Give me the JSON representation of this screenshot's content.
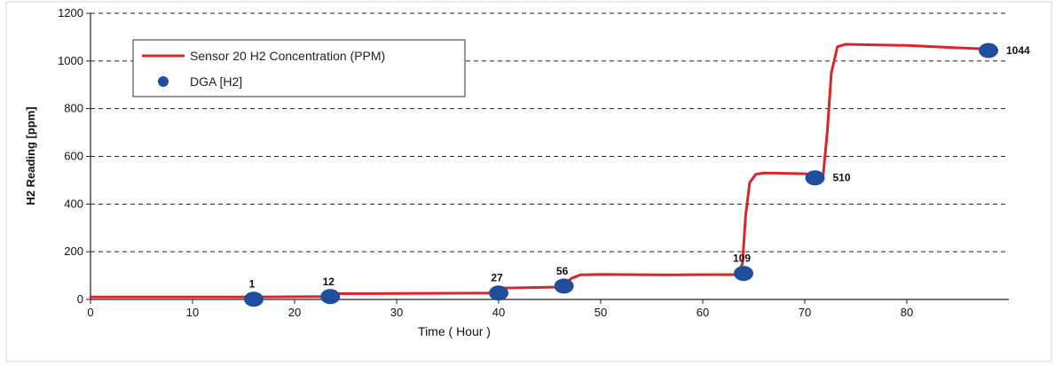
{
  "chart_data": {
    "type": "line",
    "xlabel": "Time ( Hour )",
    "ylabel": "H2 Reading [ppm]",
    "xlim": [
      0,
      90
    ],
    "ylim": [
      0,
      1200
    ],
    "x_ticks": [
      0,
      10,
      20,
      30,
      40,
      50,
      60,
      70,
      80
    ],
    "y_ticks": [
      0,
      200,
      400,
      600,
      800,
      1000,
      1200
    ],
    "grid": "horizontal-dashed",
    "legend_position": "top-left",
    "series": [
      {
        "name": "Sensor 20 H2 Concentration (PPM)",
        "kind": "line",
        "color": "#d9262b",
        "x": [
          0,
          16,
          23,
          23.6,
          30,
          40,
          40.6,
          46,
          47.2,
          48,
          50,
          56,
          60,
          63.4,
          63.9,
          64.2,
          64.6,
          65.2,
          66,
          70,
          71.8,
          72.2,
          72.6,
          73.2,
          74,
          80,
          85,
          88
        ],
        "y": [
          10,
          10,
          12,
          24,
          25,
          27,
          48,
          52,
          90,
          103,
          105,
          103,
          104,
          104,
          150,
          350,
          490,
          525,
          530,
          527,
          520,
          700,
          950,
          1060,
          1070,
          1065,
          1055,
          1050
        ]
      },
      {
        "name": "DGA [H2]",
        "kind": "scatter",
        "color": "#1f4e9c",
        "x": [
          16,
          23.5,
          40,
          46.4,
          64,
          71,
          88
        ],
        "y": [
          1,
          12,
          27,
          56,
          109,
          510,
          1044
        ],
        "labels": [
          "1",
          "12",
          "27",
          "56",
          "109",
          "510",
          "1044"
        ]
      }
    ]
  }
}
